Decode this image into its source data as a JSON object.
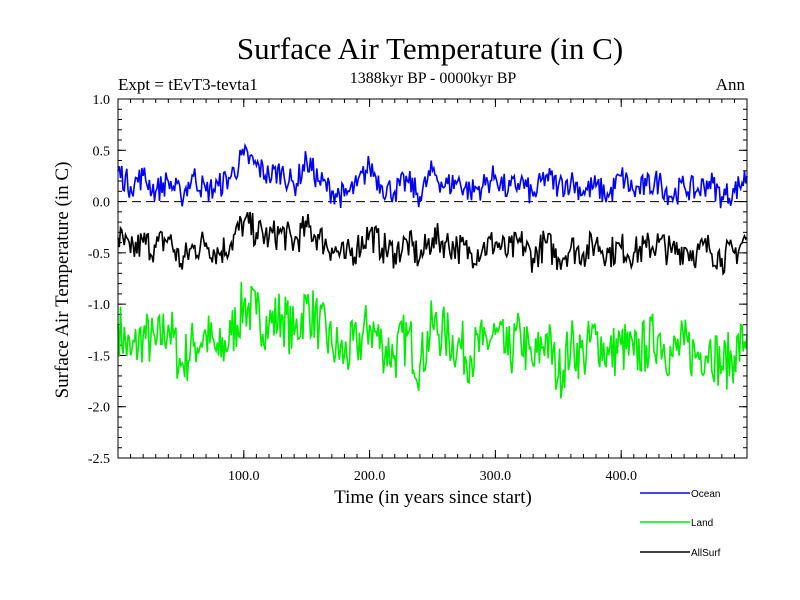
{
  "chart_data": {
    "type": "line",
    "title": "Surface Air Temperature (in C)",
    "subtitle": "1388kyr BP - 0000kyr BP",
    "left_note": "Expt = tEvT3-tevta1",
    "right_note": "Ann",
    "xlabel": "Time (in years since start)",
    "ylabel": "Surface Air Temperature (in C)",
    "xlim": [
      0,
      500
    ],
    "ylim": [
      -2.5,
      1.0
    ],
    "xticks": [
      100,
      200,
      300,
      400
    ],
    "xtick_labels": [
      "100.0",
      "200.0",
      "300.0",
      "400.0"
    ],
    "yticks": [
      1.0,
      0.5,
      0.0,
      -0.5,
      -1.0,
      -1.5,
      -2.0,
      -2.5
    ],
    "ytick_labels": [
      "1.0",
      "0.5",
      "0.0",
      "-0.5",
      "-1.0",
      "-1.5",
      "-2.0",
      "-2.5"
    ],
    "reference_line": 0.0,
    "series": [
      {
        "name": "Ocean",
        "color": "#0000ff",
        "x": [
          0,
          10,
          20,
          30,
          40,
          50,
          60,
          70,
          80,
          90,
          100,
          110,
          120,
          130,
          140,
          150,
          160,
          170,
          180,
          190,
          200,
          210,
          220,
          230,
          240,
          250,
          260,
          270,
          280,
          290,
          300,
          310,
          320,
          330,
          340,
          350,
          360,
          370,
          380,
          390,
          400,
          410,
          420,
          430,
          440,
          450,
          460,
          470,
          480,
          490,
          500
        ],
        "values": [
          0.3,
          0.15,
          0.25,
          0.1,
          0.2,
          0.05,
          0.25,
          0.1,
          0.15,
          0.25,
          0.45,
          0.35,
          0.25,
          0.3,
          0.15,
          0.4,
          0.2,
          0.1,
          0.05,
          0.15,
          0.35,
          0.15,
          0.1,
          0.2,
          0.05,
          0.3,
          0.15,
          0.2,
          0.1,
          0.15,
          0.25,
          0.1,
          0.2,
          0.05,
          0.25,
          0.15,
          0.2,
          0.1,
          0.15,
          0.05,
          0.25,
          0.1,
          0.15,
          0.2,
          0.05,
          0.15,
          0.1,
          0.2,
          0.05,
          0.1,
          0.25
        ]
      },
      {
        "name": "Land",
        "color": "#00ee00",
        "x": [
          0,
          10,
          20,
          30,
          40,
          50,
          60,
          70,
          80,
          90,
          100,
          110,
          120,
          130,
          140,
          150,
          160,
          170,
          180,
          190,
          200,
          210,
          220,
          230,
          240,
          250,
          260,
          270,
          280,
          290,
          300,
          310,
          320,
          330,
          340,
          350,
          360,
          370,
          380,
          390,
          400,
          410,
          420,
          430,
          440,
          450,
          460,
          470,
          480,
          490,
          500
        ],
        "values": [
          -1.2,
          -1.5,
          -1.3,
          -1.4,
          -1.2,
          -1.6,
          -1.4,
          -1.3,
          -1.5,
          -1.3,
          -1.0,
          -1.1,
          -1.2,
          -1.1,
          -1.3,
          -1.0,
          -1.2,
          -1.4,
          -1.5,
          -1.4,
          -1.2,
          -1.4,
          -1.5,
          -1.3,
          -1.6,
          -1.2,
          -1.3,
          -1.4,
          -1.5,
          -1.4,
          -1.3,
          -1.5,
          -1.3,
          -1.6,
          -1.3,
          -1.7,
          -1.4,
          -1.5,
          -1.3,
          -1.5,
          -1.4,
          -1.5,
          -1.4,
          -1.3,
          -1.5,
          -1.4,
          -1.5,
          -1.4,
          -1.6,
          -1.5,
          -1.3
        ]
      },
      {
        "name": "AllSurf",
        "color": "#000000",
        "x": [
          0,
          10,
          20,
          30,
          40,
          50,
          60,
          70,
          80,
          90,
          100,
          110,
          120,
          130,
          140,
          150,
          160,
          170,
          180,
          190,
          200,
          210,
          220,
          230,
          240,
          250,
          260,
          270,
          280,
          290,
          300,
          310,
          320,
          330,
          340,
          350,
          360,
          370,
          380,
          390,
          400,
          410,
          420,
          430,
          440,
          450,
          460,
          470,
          480,
          490,
          500
        ],
        "values": [
          -0.35,
          -0.5,
          -0.4,
          -0.45,
          -0.35,
          -0.6,
          -0.45,
          -0.4,
          -0.5,
          -0.4,
          -0.2,
          -0.3,
          -0.35,
          -0.3,
          -0.4,
          -0.25,
          -0.35,
          -0.45,
          -0.55,
          -0.45,
          -0.3,
          -0.45,
          -0.5,
          -0.4,
          -0.55,
          -0.35,
          -0.4,
          -0.45,
          -0.5,
          -0.45,
          -0.4,
          -0.5,
          -0.4,
          -0.55,
          -0.4,
          -0.55,
          -0.45,
          -0.5,
          -0.4,
          -0.5,
          -0.45,
          -0.5,
          -0.45,
          -0.4,
          -0.5,
          -0.45,
          -0.5,
          -0.45,
          -0.55,
          -0.5,
          -0.35
        ]
      }
    ]
  }
}
